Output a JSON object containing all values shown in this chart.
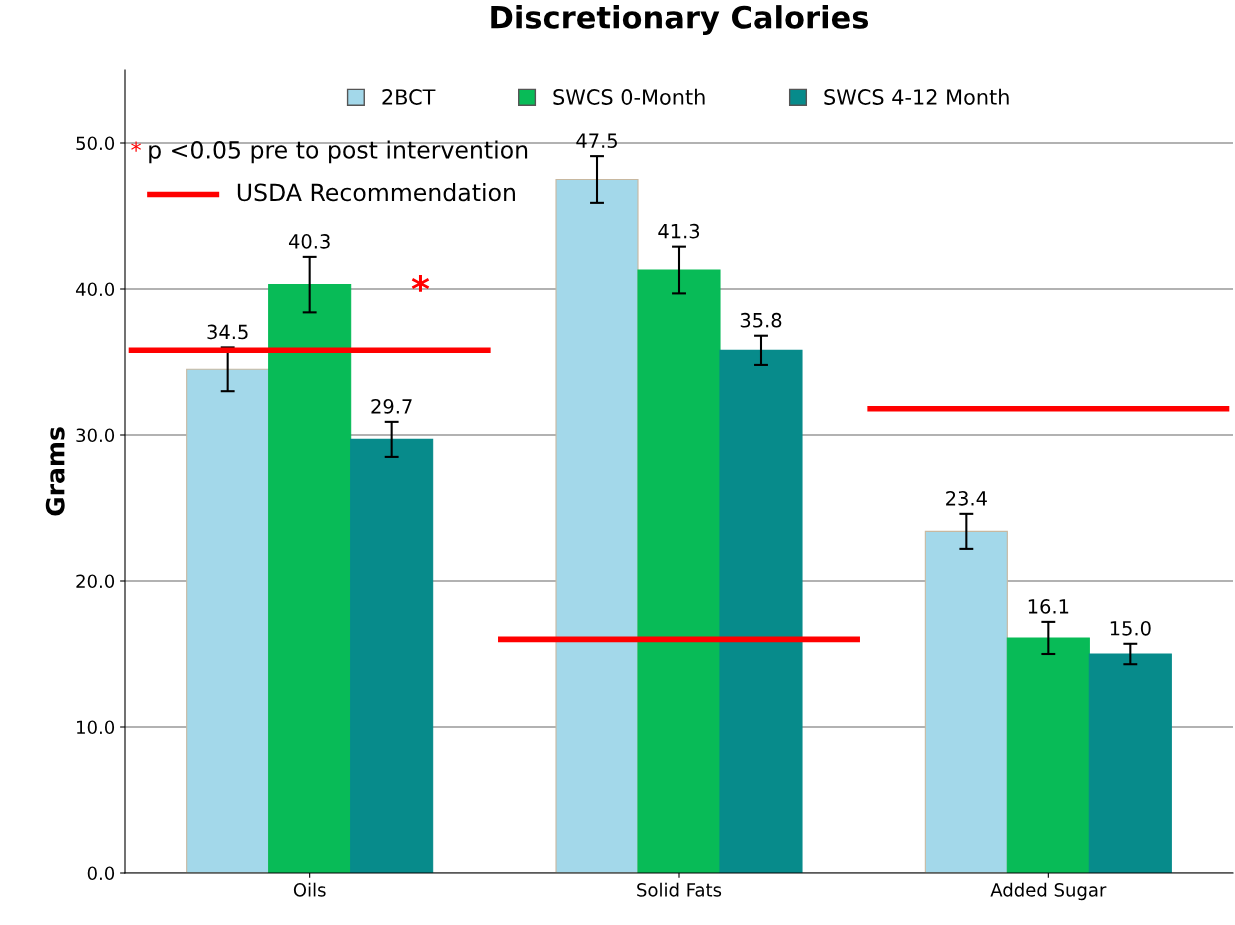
{
  "chart_data": {
    "type": "bar",
    "title": "Discretionary Calories",
    "ylabel": "Grams",
    "categories": [
      "Oils",
      "Solid Fats",
      "Added Sugar"
    ],
    "series": [
      {
        "name": "2BCT",
        "color": "#a3d8ea",
        "values": [
          34.5,
          47.5,
          23.4
        ],
        "errors": [
          1.5,
          1.6,
          1.2
        ],
        "value_labels": [
          "34.5",
          "47.5",
          "23.4"
        ]
      },
      {
        "name": "SWCS 0-Month",
        "color": "#08bb57",
        "values": [
          40.3,
          41.3,
          16.1
        ],
        "errors": [
          1.9,
          1.6,
          1.1
        ],
        "value_labels": [
          "40.3",
          "41.3",
          "16.1"
        ]
      },
      {
        "name": "SWCS 4-12 Month",
        "color": "#078b8b",
        "values": [
          29.7,
          35.8,
          15.0
        ],
        "errors": [
          1.2,
          1.0,
          0.7
        ],
        "value_labels": [
          "29.7",
          "35.8",
          "15.0"
        ]
      }
    ],
    "ylim": [
      0,
      55
    ],
    "yticks": [
      {
        "value": 0,
        "label": "0.0"
      },
      {
        "value": 10,
        "label": "10.0"
      },
      {
        "value": 20,
        "label": "20.0"
      },
      {
        "value": 30,
        "label": "30.0"
      },
      {
        "value": 40,
        "label": "40.0"
      },
      {
        "value": 50,
        "label": "50.0"
      }
    ],
    "grid": "y",
    "legend": "top",
    "ref_lines": [
      {
        "axis": "y",
        "value": 35.8,
        "label": null,
        "color": "#ff0000"
      },
      {
        "axis": "y",
        "value": 16.0,
        "label": null,
        "color": "#ff0000"
      },
      {
        "axis": "y",
        "value": 31.8,
        "label": null,
        "color": "#ff0000"
      }
    ],
    "annotations": [
      {
        "text": "*",
        "x": "Oils",
        "y": 39.8
      },
      "*",
      "p <0.05 pre to post intervention",
      "USDA Recommendation"
    ]
  }
}
